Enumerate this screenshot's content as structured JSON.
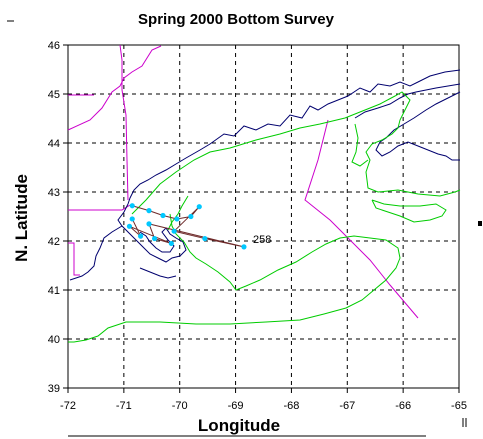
{
  "title": "Spring 2000 Bottom Survey",
  "axes": {
    "xlabel": "Longitude",
    "ylabel": "N. Latitude",
    "x_ticks": [
      "-72",
      "-71",
      "-70",
      "-69",
      "-68",
      "-67",
      "-66",
      "-65"
    ],
    "y_ticks": [
      "46",
      "45",
      "44",
      "43",
      "42",
      "41",
      "40",
      "39"
    ],
    "xlim": [
      -72,
      -65
    ],
    "ylim": [
      39,
      46
    ],
    "grid": true
  },
  "station_label": "258",
  "colors": {
    "coastline": "#00006e",
    "political_boundary": "#cc00cc",
    "depth_contour": "#00cc00",
    "cruise_track": "#6e2a2a",
    "stations": "#00c8ff",
    "grid": "#000000"
  },
  "stations": [
    {
      "lon": -70.85,
      "lat": 42.72
    },
    {
      "lon": -70.55,
      "lat": 42.62
    },
    {
      "lon": -70.3,
      "lat": 42.52
    },
    {
      "lon": -70.05,
      "lat": 42.45
    },
    {
      "lon": -69.8,
      "lat": 42.5
    },
    {
      "lon": -69.65,
      "lat": 42.7
    },
    {
      "lon": -70.1,
      "lat": 42.2
    },
    {
      "lon": -69.55,
      "lat": 42.05
    },
    {
      "lon": -68.85,
      "lat": 41.88
    },
    {
      "lon": -70.55,
      "lat": 42.35
    },
    {
      "lon": -70.45,
      "lat": 42.05
    },
    {
      "lon": -70.15,
      "lat": 41.95
    },
    {
      "lon": -70.9,
      "lat": 42.3
    },
    {
      "lon": -70.7,
      "lat": 42.1
    },
    {
      "lon": -70.85,
      "lat": 42.45
    }
  ]
}
